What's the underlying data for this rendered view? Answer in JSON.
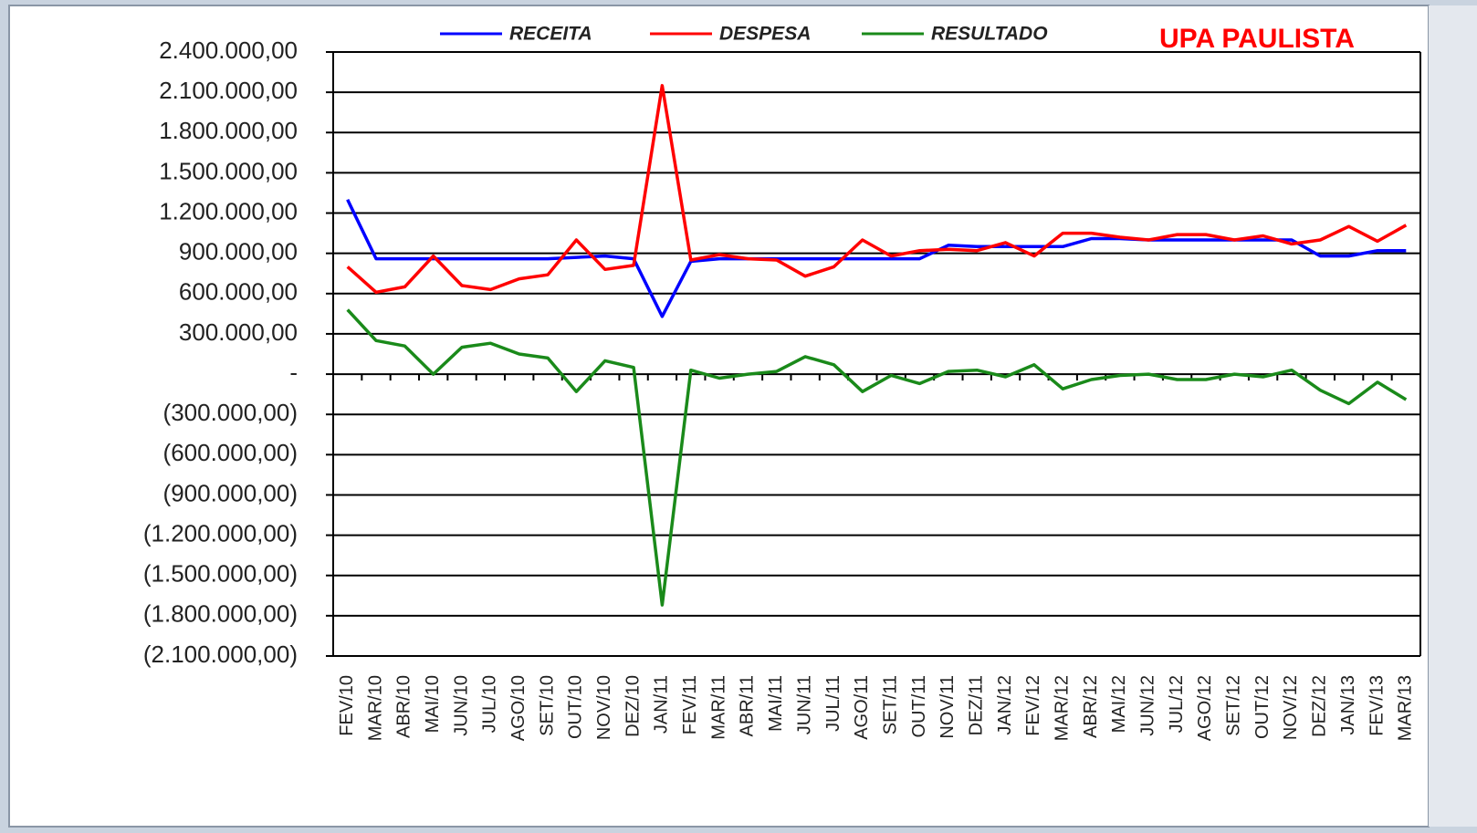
{
  "chart_data": {
    "type": "line",
    "title": "UPA PAULISTA",
    "categories": [
      "FEV/10",
      "MAR/10",
      "ABR/10",
      "MAI/10",
      "JUN/10",
      "JUL/10",
      "AGO/10",
      "SET/10",
      "OUT/10",
      "NOV/10",
      "DEZ/10",
      "JAN/11",
      "FEV/11",
      "MAR/11",
      "ABR/11",
      "MAI/11",
      "JUN/11",
      "JUL/11",
      "AGO/11",
      "SET/11",
      "OUT/11",
      "NOV/11",
      "DEZ/11",
      "JAN/12",
      "FEV/12",
      "MAR/12",
      "ABR/12",
      "MAI/12",
      "JUN/12",
      "JUL/12",
      "AGO/12",
      "SET/12",
      "OUT/12",
      "NOV/12",
      "DEZ/12",
      "JAN/13",
      "FEV/13",
      "MAR/13"
    ],
    "series": [
      {
        "name": "RECEITA",
        "color": "#0000ff",
        "values": [
          1300000,
          860000,
          860000,
          860000,
          860000,
          860000,
          860000,
          860000,
          870000,
          880000,
          860000,
          430000,
          840000,
          860000,
          860000,
          860000,
          860000,
          860000,
          860000,
          860000,
          860000,
          960000,
          950000,
          950000,
          950000,
          950000,
          1010000,
          1010000,
          1000000,
          1000000,
          1000000,
          1000000,
          1000000,
          1000000,
          880000,
          880000,
          920000,
          920000
        ]
      },
      {
        "name": "DESPESA",
        "color": "#ff0000",
        "values": [
          800000,
          610000,
          650000,
          880000,
          660000,
          630000,
          710000,
          740000,
          1000000,
          780000,
          810000,
          2150000,
          850000,
          890000,
          860000,
          850000,
          730000,
          800000,
          1000000,
          880000,
          920000,
          930000,
          920000,
          980000,
          880000,
          1050000,
          1050000,
          1020000,
          1000000,
          1040000,
          1040000,
          1000000,
          1030000,
          970000,
          1000000,
          1100000,
          990000,
          1110000
        ]
      },
      {
        "name": "RESULTADO",
        "color": "#1a8a1a",
        "values": [
          480000,
          250000,
          210000,
          0,
          200000,
          230000,
          150000,
          120000,
          -130000,
          100000,
          50000,
          -1720000,
          30000,
          -30000,
          0,
          20000,
          130000,
          70000,
          -130000,
          -10000,
          -70000,
          20000,
          30000,
          -20000,
          70000,
          -110000,
          -40000,
          -10000,
          0,
          -40000,
          -40000,
          0,
          -20000,
          30000,
          -120000,
          -220000,
          -60000,
          -190000
        ]
      }
    ],
    "ylim": [
      -2100000,
      2400000
    ],
    "yticks": [
      {
        "value": 2400000,
        "label": "2.400.000,00"
      },
      {
        "value": 2100000,
        "label": "2.100.000,00"
      },
      {
        "value": 1800000,
        "label": "1.800.000,00"
      },
      {
        "value": 1500000,
        "label": "1.500.000,00"
      },
      {
        "value": 1200000,
        "label": "1.200.000,00"
      },
      {
        "value": 900000,
        "label": "900.000,00"
      },
      {
        "value": 600000,
        "label": "600.000,00"
      },
      {
        "value": 300000,
        "label": "300.000,00"
      },
      {
        "value": 0,
        "label": "-"
      },
      {
        "value": -300000,
        "label": "(300.000,00)"
      },
      {
        "value": -600000,
        "label": "(600.000,00)"
      },
      {
        "value": -900000,
        "label": "(900.000,00)"
      },
      {
        "value": -1200000,
        "label": "(1.200.000,00)"
      },
      {
        "value": -1500000,
        "label": "(1.500.000,00)"
      },
      {
        "value": -1800000,
        "label": "(1.800.000,00)"
      },
      {
        "value": -2100000,
        "label": "(2.100.000,00)"
      }
    ],
    "grid": true,
    "legend": "top"
  }
}
